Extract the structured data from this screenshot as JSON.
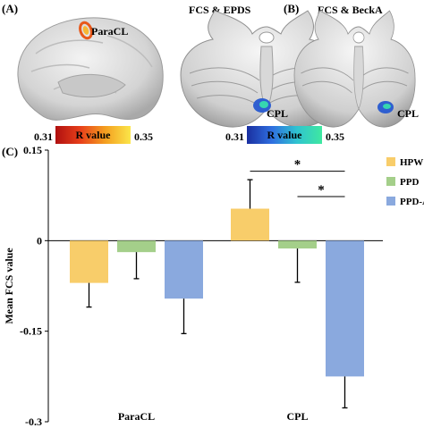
{
  "panels": {
    "a_letter": "(A)",
    "b_letter": "(B)",
    "c_letter": "(C)",
    "a_title": "FCS & EPDS",
    "b_title": "FCS & BeckA",
    "a_brain_label": "ParaCL",
    "a_cereb_label": "CPL",
    "b_cereb_label": "CPL"
  },
  "colorbars": {
    "warm": {
      "min": "0.31",
      "label": "R value",
      "max": "0.35"
    },
    "cool": {
      "min": "0.31",
      "label": "R value",
      "max": "0.35"
    }
  },
  "colors": {
    "HPW": "#f8cd6a",
    "PPD": "#a4cf8a",
    "PPD-A": "#8aa9de"
  },
  "chart_data": {
    "type": "bar",
    "categories": [
      "ParaCL",
      "CPL"
    ],
    "series": [
      {
        "name": "HPW",
        "values": [
          -0.07,
          0.053
        ],
        "errors": [
          0.04,
          0.048
        ]
      },
      {
        "name": "PPD",
        "values": [
          -0.019,
          -0.013
        ],
        "errors": [
          0.044,
          0.056
        ]
      },
      {
        "name": "PPD-A",
        "values": [
          -0.096,
          -0.225
        ],
        "errors": [
          0.058,
          0.052
        ]
      }
    ],
    "ylabel": "Mean FCS value",
    "yticks": [
      "0.15",
      "0",
      "-0.15",
      "-0.3"
    ],
    "ylim": [
      -0.3,
      0.15
    ],
    "significance": [
      "*",
      "*"
    ],
    "legend": [
      "HPW",
      "PPD",
      "PPD-A"
    ]
  }
}
